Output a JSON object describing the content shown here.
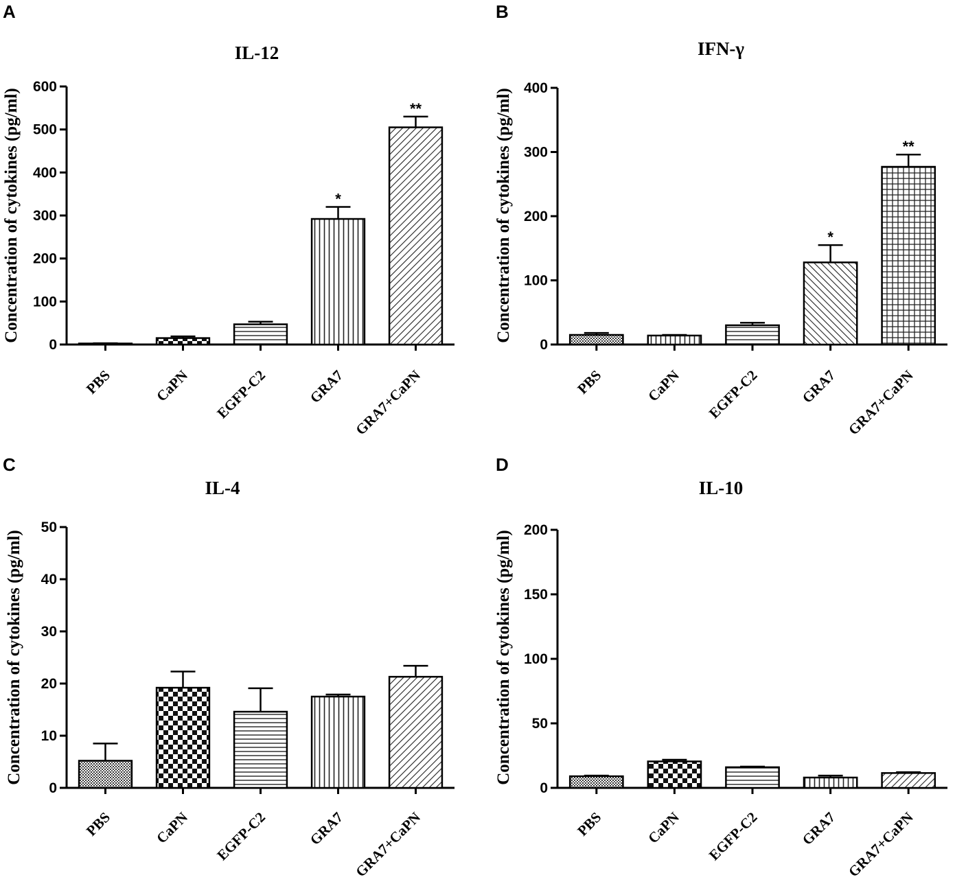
{
  "chart_data": [
    {
      "panel": "A",
      "type": "bar",
      "title": "IL-12",
      "ylabel": "Concentration of cytokines (pg/ml)",
      "xlabel": "",
      "ylim": [
        0,
        600
      ],
      "yticks": [
        "0",
        "100",
        "200",
        "300",
        "400",
        "500",
        "600"
      ],
      "categories": [
        "PBS",
        "CaPN",
        "EGFP-C2",
        "GRA7",
        "GRA7+CaPN"
      ],
      "values": [
        2,
        15,
        47,
        292,
        505
      ],
      "errors": [
        1,
        4,
        6,
        28,
        25
      ],
      "patterns": [
        "dots",
        "checker",
        "hlines",
        "vlines",
        "diag-right"
      ],
      "significance": [
        "",
        "",
        "",
        "*",
        "**"
      ]
    },
    {
      "panel": "B",
      "type": "bar",
      "title": "IFN-γ",
      "ylabel": "Concentration of cytokines (pg/ml)",
      "xlabel": "",
      "ylim": [
        0,
        400
      ],
      "yticks": [
        "0",
        "100",
        "200",
        "300",
        "400"
      ],
      "categories": [
        "PBS",
        "CaPN",
        "EGFP-C2",
        "GRA7",
        "GRA7+CaPN"
      ],
      "values": [
        15,
        14,
        30,
        128,
        277
      ],
      "errors": [
        3,
        1,
        4,
        27,
        19
      ],
      "patterns": [
        "dots",
        "vlines",
        "hlines",
        "diag-left",
        "grid"
      ],
      "significance": [
        "",
        "",
        "",
        "*",
        "**"
      ]
    },
    {
      "panel": "C",
      "type": "bar",
      "title": "IL-4",
      "ylabel": "Concentration of cytokines (pg/ml)",
      "xlabel": "",
      "ylim": [
        0,
        50
      ],
      "yticks": [
        "0",
        "10",
        "20",
        "30",
        "40",
        "50"
      ],
      "categories": [
        "PBS",
        "CaPN",
        "EGFP-C2",
        "GRA7",
        "GRA7+CaPN"
      ],
      "values": [
        5.2,
        19.2,
        14.6,
        17.5,
        21.3
      ],
      "errors": [
        3.3,
        3.1,
        4.5,
        0.4,
        2.1
      ],
      "patterns": [
        "dots",
        "checker",
        "hlines",
        "vlines",
        "diag-right"
      ],
      "significance": [
        "",
        "",
        "",
        "",
        ""
      ]
    },
    {
      "panel": "D",
      "type": "bar",
      "title": "IL-10",
      "ylabel": "Concentration of cytokines (pg/ml)",
      "xlabel": "",
      "ylim": [
        0,
        200
      ],
      "yticks": [
        "0",
        "50",
        "100",
        "150",
        "200"
      ],
      "categories": [
        "PBS",
        "CaPN",
        "EGFP-C2",
        "GRA7",
        "GRA7+CaPN"
      ],
      "values": [
        9,
        20.5,
        16,
        8,
        11.5
      ],
      "errors": [
        0.5,
        1.3,
        0.5,
        1.5,
        0.7
      ],
      "patterns": [
        "dots",
        "checker",
        "hlines",
        "vlines",
        "diag-right"
      ],
      "significance": [
        "",
        "",
        "",
        "",
        ""
      ]
    }
  ]
}
